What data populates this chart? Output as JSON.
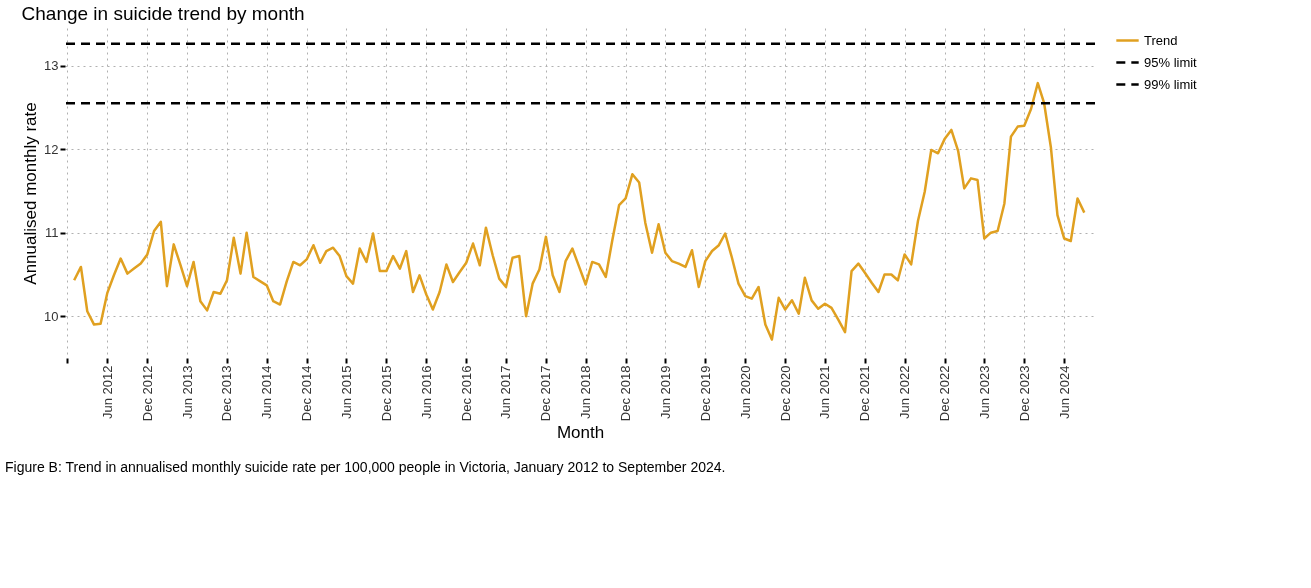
{
  "chart_data": {
    "type": "line",
    "title": "Change in suicide trend by month",
    "xlabel": "Month",
    "ylabel": "Annualised monthly rate",
    "x": [
      "2012-01",
      "2012-02",
      "2012-03",
      "2012-04",
      "2012-05",
      "2012-06",
      "2012-07",
      "2012-08",
      "2012-09",
      "2012-10",
      "2012-11",
      "2012-12",
      "2013-01",
      "2013-02",
      "2013-03",
      "2013-04",
      "2013-05",
      "2013-06",
      "2013-07",
      "2013-08",
      "2013-09",
      "2013-10",
      "2013-11",
      "2013-12",
      "2014-01",
      "2014-02",
      "2014-03",
      "2014-04",
      "2014-05",
      "2014-06",
      "2014-07",
      "2014-08",
      "2014-09",
      "2014-10",
      "2014-11",
      "2014-12",
      "2015-01",
      "2015-02",
      "2015-03",
      "2015-04",
      "2015-05",
      "2015-06",
      "2015-07",
      "2015-08",
      "2015-09",
      "2015-10",
      "2015-11",
      "2015-12",
      "2016-01",
      "2016-02",
      "2016-03",
      "2016-04",
      "2016-05",
      "2016-06",
      "2016-07",
      "2016-08",
      "2016-09",
      "2016-10",
      "2016-11",
      "2016-12",
      "2017-01",
      "2017-02",
      "2017-03",
      "2017-04",
      "2017-05",
      "2017-06",
      "2017-07",
      "2017-08",
      "2017-09",
      "2017-10",
      "2017-11",
      "2017-12",
      "2018-01",
      "2018-02",
      "2018-03",
      "2018-04",
      "2018-05",
      "2018-06",
      "2018-07",
      "2018-08",
      "2018-09",
      "2018-10",
      "2018-11",
      "2018-12",
      "2019-01",
      "2019-02",
      "2019-03",
      "2019-04",
      "2019-05",
      "2019-06",
      "2019-07",
      "2019-08",
      "2019-09",
      "2019-10",
      "2019-11",
      "2019-12",
      "2020-01",
      "2020-02",
      "2020-03",
      "2020-04",
      "2020-05",
      "2020-06",
      "2020-07",
      "2020-08",
      "2020-09",
      "2020-10",
      "2020-11",
      "2020-12",
      "2021-01",
      "2021-02",
      "2021-03",
      "2021-04",
      "2021-05",
      "2021-06",
      "2021-07",
      "2021-08",
      "2021-09",
      "2021-10",
      "2021-11",
      "2021-12",
      "2022-01",
      "2022-02",
      "2022-03",
      "2022-04",
      "2022-05",
      "2022-06",
      "2022-07",
      "2022-08",
      "2022-09",
      "2022-10",
      "2022-11",
      "2022-12",
      "2023-01",
      "2023-02",
      "2023-03",
      "2023-04",
      "2023-05",
      "2023-06",
      "2023-07",
      "2023-08",
      "2023-09",
      "2023-10",
      "2023-11",
      "2023-12",
      "2024-01",
      "2024-02",
      "2024-03",
      "2024-04",
      "2024-05",
      "2024-06",
      "2024-07",
      "2024-08",
      "2024-09"
    ],
    "series": [
      {
        "name": "Trend",
        "color": "#e0a020",
        "values": [
          10.43,
          10.59,
          10.06,
          9.9,
          9.91,
          10.28,
          10.49,
          10.69,
          10.51,
          10.57,
          10.63,
          10.74,
          11.02,
          11.13,
          10.36,
          10.86,
          10.62,
          10.36,
          10.65,
          10.18,
          10.07,
          10.29,
          10.27,
          10.43,
          10.94,
          10.51,
          11.0,
          10.47,
          10.42,
          10.37,
          10.18,
          10.14,
          10.42,
          10.65,
          10.61,
          10.68,
          10.85,
          10.64,
          10.78,
          10.82,
          10.72,
          10.48,
          10.39,
          10.81,
          10.65,
          10.99,
          10.54,
          10.54,
          10.72,
          10.57,
          10.78,
          10.29,
          10.49,
          10.26,
          10.08,
          10.29,
          10.62,
          10.41,
          10.53,
          10.64,
          10.87,
          10.61,
          11.06,
          10.73,
          10.45,
          10.35,
          10.7,
          10.72,
          10.0,
          10.39,
          10.56,
          10.95,
          10.49,
          10.29,
          10.66,
          10.81,
          10.6,
          10.38,
          10.65,
          10.62,
          10.47,
          10.91,
          11.33,
          11.41,
          11.7,
          11.6,
          11.12,
          10.76,
          11.1,
          10.76,
          10.66,
          10.63,
          10.59,
          10.79,
          10.35,
          10.66,
          10.78,
          10.85,
          10.99,
          10.7,
          10.39,
          10.24,
          10.21,
          10.35,
          9.9,
          9.72,
          10.22,
          10.08,
          10.19,
          10.03,
          10.46,
          10.19,
          10.09,
          10.15,
          10.1,
          9.96,
          9.81,
          10.54,
          10.63,
          10.52,
          10.4,
          10.29,
          10.5,
          10.5,
          10.43,
          10.74,
          10.62,
          11.14,
          11.49,
          11.99,
          11.95,
          12.12,
          12.23,
          11.98,
          11.53,
          11.65,
          11.63,
          10.93,
          11.0,
          11.02,
          11.35,
          12.15,
          12.27,
          12.28,
          12.48,
          12.79,
          12.55,
          12.02,
          11.21,
          10.93,
          10.9,
          11.41,
          11.24
        ]
      }
    ],
    "ref_lines": [
      {
        "axis": "y",
        "value": 12.55,
        "label": "95% limit",
        "color": "#000000",
        "line_style": "dashed"
      },
      {
        "axis": "y",
        "value": 13.26,
        "label": "99% limit",
        "color": "#000000",
        "line_style": "dashed"
      }
    ],
    "xlim": [
      "2011-11-20",
      "2024-10-20"
    ],
    "ylim": [
      9.5,
      13.45
    ],
    "yticks": [
      10,
      11,
      12,
      13
    ],
    "xticks": [
      {
        "value": "2011-12",
        "label": null
      },
      {
        "value": "2012-06",
        "label": "Jun 2012"
      },
      {
        "value": "2012-12",
        "label": "Dec 2012"
      },
      {
        "value": "2013-06",
        "label": "Jun 2013"
      },
      {
        "value": "2013-12",
        "label": "Dec 2013"
      },
      {
        "value": "2014-06",
        "label": "Jun 2014"
      },
      {
        "value": "2014-12",
        "label": "Dec 2014"
      },
      {
        "value": "2015-06",
        "label": "Jun 2015"
      },
      {
        "value": "2015-12",
        "label": "Dec 2015"
      },
      {
        "value": "2016-06",
        "label": "Jun 2016"
      },
      {
        "value": "2016-12",
        "label": "Dec 2016"
      },
      {
        "value": "2017-06",
        "label": "Jun 2017"
      },
      {
        "value": "2017-12",
        "label": "Dec 2017"
      },
      {
        "value": "2018-06",
        "label": "Jun 2018"
      },
      {
        "value": "2018-12",
        "label": "Dec 2018"
      },
      {
        "value": "2019-06",
        "label": "Jun 2019"
      },
      {
        "value": "2019-12",
        "label": "Dec 2019"
      },
      {
        "value": "2020-06",
        "label": "Jun 2020"
      },
      {
        "value": "2020-12",
        "label": "Dec 2020"
      },
      {
        "value": "2021-06",
        "label": "Jun 2021"
      },
      {
        "value": "2021-12",
        "label": "Dec 2021"
      },
      {
        "value": "2022-06",
        "label": "Jun 2022"
      },
      {
        "value": "2022-12",
        "label": "Dec 2022"
      },
      {
        "value": "2023-06",
        "label": "Jun 2023"
      },
      {
        "value": "2023-12",
        "label": "Dec 2023"
      },
      {
        "value": "2024-06",
        "label": "Jun 2024"
      }
    ],
    "grid": true,
    "legend": "right",
    "line_style": "solid",
    "marker": "none",
    "annotations": [
      "Figure B: Trend in annualised monthly suicide rate per 100,000 people in Victoria, January 2012 to September 2024."
    ]
  }
}
